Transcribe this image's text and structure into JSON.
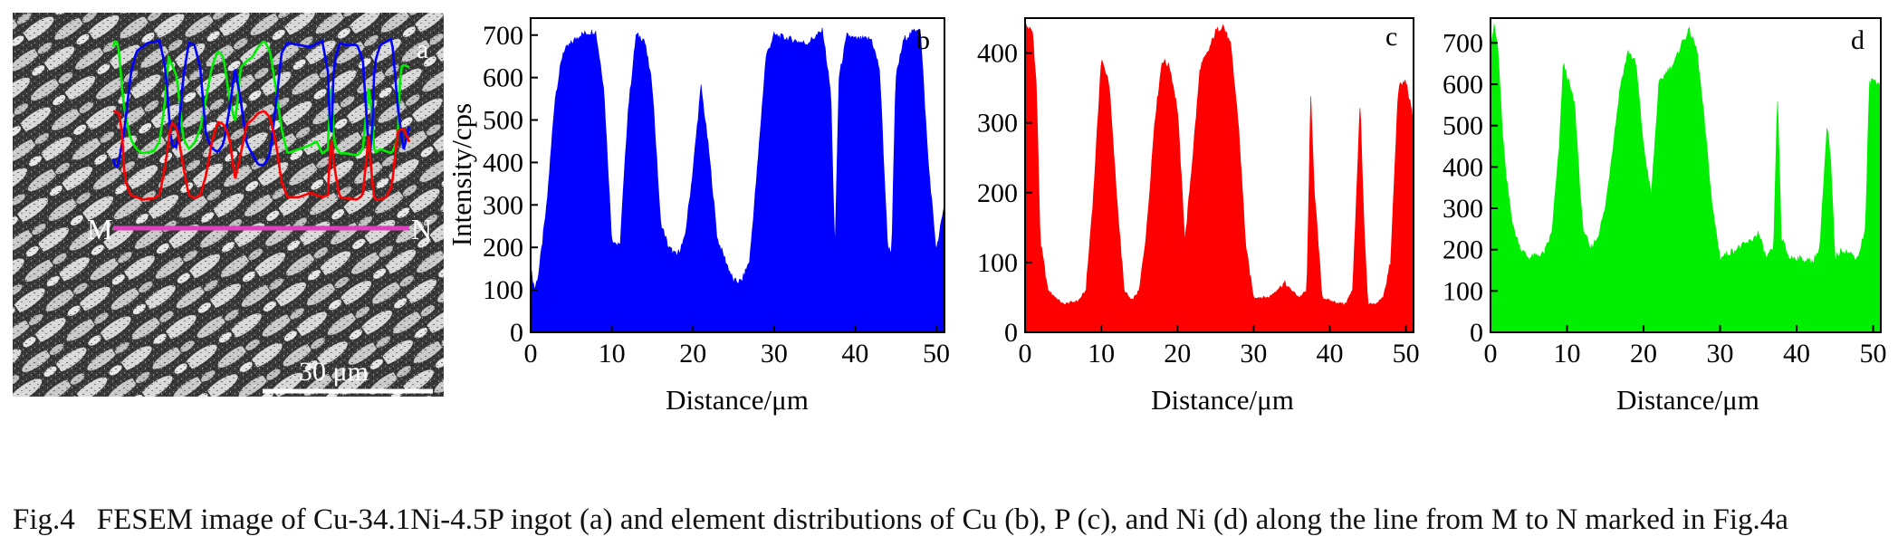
{
  "panels": {
    "sem": {
      "letter": "a",
      "scalebar_label": "30 μm",
      "start_marker": "M",
      "end_marker": "N"
    }
  },
  "caption": {
    "label": "Fig.4",
    "text": "FESEM image of Cu-34.1Ni-4.5P ingot (a) and element distributions of Cu (b), P (c), and Ni (d) along the line from M to N marked in Fig.4a"
  },
  "colors": {
    "cu": "#0000ff",
    "p": "#ff0000",
    "ni": "#00ee00",
    "line": "#e040c0"
  },
  "chart_data": [
    {
      "type": "area",
      "letter": "b",
      "xlabel": "Distance/μm",
      "ylabel": "Intensity/cps",
      "xlim": [
        0,
        51
      ],
      "ylim": [
        0,
        740
      ],
      "xticks": [
        0,
        10,
        20,
        30,
        40,
        50
      ],
      "yticks": [
        0,
        100,
        200,
        300,
        400,
        500,
        600,
        700
      ],
      "color": "#0000ff",
      "x": [
        0,
        0.5,
        1,
        2,
        3,
        4,
        6,
        8,
        9,
        10,
        11,
        12,
        13,
        14,
        15,
        16,
        17,
        18,
        19,
        20,
        21,
        22,
        23,
        24,
        25,
        26,
        27,
        28,
        29,
        30,
        32,
        34,
        36,
        37,
        37.5,
        38,
        39,
        40,
        42,
        43,
        44,
        44.5,
        45,
        46,
        48,
        49,
        50,
        51
      ],
      "y": [
        150,
        100,
        140,
        300,
        550,
        660,
        700,
        710,
        580,
        220,
        200,
        520,
        700,
        690,
        580,
        260,
        200,
        180,
        220,
        380,
        580,
        420,
        220,
        170,
        120,
        120,
        170,
        400,
        650,
        700,
        690,
        680,
        710,
        560,
        180,
        600,
        700,
        690,
        690,
        620,
        200,
        190,
        600,
        690,
        720,
        400,
        190,
        300
      ]
    },
    {
      "type": "area",
      "letter": "c",
      "xlabel": "Distance/μm",
      "ylabel": "",
      "xlim": [
        0,
        51
      ],
      "ylim": [
        0,
        450
      ],
      "xticks": [
        0,
        10,
        20,
        30,
        40,
        50
      ],
      "yticks": [
        0,
        100,
        200,
        300,
        400
      ],
      "color": "#ff0000",
      "x": [
        0,
        1,
        1.5,
        2,
        3,
        5,
        7,
        8,
        9,
        10,
        11,
        12,
        13,
        14,
        15,
        16,
        17,
        18,
        19,
        20,
        21,
        22,
        23,
        24,
        25,
        26,
        27,
        28,
        29,
        30,
        32,
        34,
        35,
        36,
        37,
        37.5,
        38,
        39,
        40,
        42,
        43,
        44,
        44.5,
        45,
        46,
        47,
        48,
        49,
        50,
        51
      ],
      "y": [
        440,
        430,
        350,
        130,
        60,
        40,
        45,
        60,
        200,
        390,
        360,
        200,
        60,
        45,
        60,
        150,
        300,
        390,
        380,
        320,
        130,
        250,
        380,
        400,
        430,
        440,
        410,
        300,
        120,
        50,
        50,
        70,
        60,
        50,
        60,
        340,
        200,
        50,
        45,
        40,
        60,
        330,
        150,
        40,
        40,
        50,
        100,
        350,
        360,
        300
      ]
    },
    {
      "type": "area",
      "letter": "d",
      "xlabel": "Distance/μm",
      "ylabel": "",
      "xlim": [
        0,
        51
      ],
      "ylim": [
        0,
        760
      ],
      "xticks": [
        0,
        10,
        20,
        30,
        40,
        50
      ],
      "yticks": [
        0,
        100,
        200,
        300,
        400,
        500,
        600,
        700
      ],
      "color": "#00ee00",
      "x": [
        0,
        0.5,
        1,
        1.5,
        2,
        3,
        4,
        5,
        7,
        8,
        9,
        9.5,
        10,
        11,
        12,
        13,
        14,
        15,
        16,
        17,
        18,
        19,
        20,
        21,
        22,
        23,
        24,
        25,
        26,
        27,
        28,
        29,
        30,
        32,
        34,
        35,
        36,
        37,
        37.5,
        38,
        39,
        40,
        42,
        43,
        44,
        44.5,
        45,
        46,
        48,
        49,
        49.5,
        50,
        51
      ],
      "y": [
        700,
        740,
        680,
        500,
        380,
        250,
        200,
        180,
        190,
        240,
        450,
        650,
        620,
        550,
        260,
        200,
        230,
        300,
        450,
        600,
        680,
        650,
        450,
        330,
        600,
        630,
        650,
        700,
        730,
        680,
        500,
        300,
        180,
        200,
        220,
        240,
        180,
        200,
        580,
        230,
        180,
        180,
        170,
        200,
        500,
        400,
        180,
        200,
        180,
        250,
        600,
        610,
        600
      ]
    }
  ]
}
